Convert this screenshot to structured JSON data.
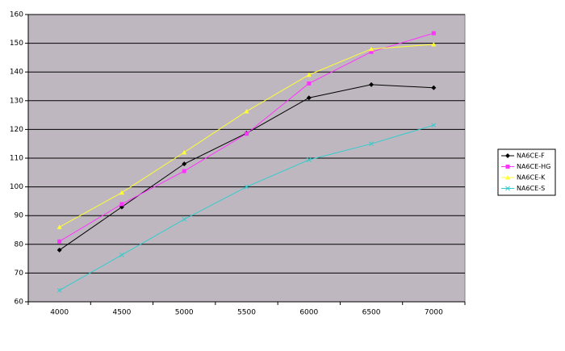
{
  "chart_data": {
    "type": "line",
    "categories": [
      "4000",
      "4500",
      "5000",
      "5500",
      "6000",
      "6500",
      "7000"
    ],
    "series": [
      {
        "name": "NA6CE-F",
        "color": "#000000",
        "marker": "diamond",
        "values": [
          78,
          93,
          108,
          118.7,
          131,
          135.6,
          134.5
        ]
      },
      {
        "name": "NA6CE-HG",
        "color": "#ff33ff",
        "marker": "square",
        "values": [
          81,
          94,
          105.5,
          118.5,
          136,
          147,
          153.5
        ]
      },
      {
        "name": "NA6CE-K",
        "color": "#ffff33",
        "marker": "triangle",
        "values": [
          86,
          98,
          112,
          126.3,
          139,
          148,
          149.6
        ]
      },
      {
        "name": "NA6CE-S",
        "color": "#33cccc",
        "marker": "x",
        "values": [
          64,
          76.3,
          88.7,
          100,
          109.4,
          115,
          121.5
        ]
      }
    ],
    "ylim": [
      60,
      160
    ],
    "yticks": [
      60,
      70,
      80,
      90,
      100,
      110,
      120,
      130,
      140,
      150,
      160
    ],
    "grid": true,
    "plot_background": "#bfb7c0",
    "legend": "right"
  }
}
